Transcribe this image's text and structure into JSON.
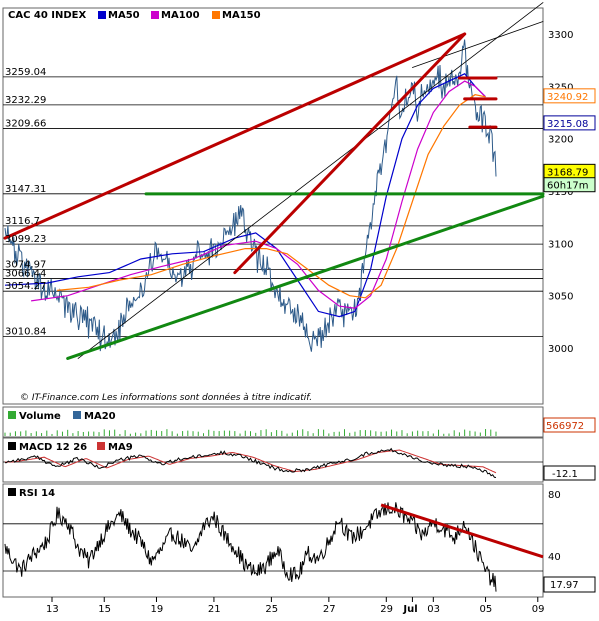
{
  "chart_data": {
    "type": "line",
    "title": "CAC 40 INDEX",
    "main": {
      "ylim": [
        2965,
        3325
      ],
      "y_ticks": [
        3000,
        3050,
        3100,
        3150,
        3200,
        3250,
        3300
      ],
      "legend": [
        {
          "name": "MA50",
          "color": "#0000cc"
        },
        {
          "name": "MA100",
          "color": "#cc00cc"
        },
        {
          "name": "MA150",
          "color": "#ff7700"
        }
      ],
      "levels": [
        {
          "label": "3259.04",
          "value": 3259.04
        },
        {
          "label": "3232.29",
          "value": 3232.29
        },
        {
          "label": "3209.66",
          "value": 3209.66
        },
        {
          "label": "3147.31",
          "value": 3147.31
        },
        {
          "label": "3116.7",
          "value": 3116.7
        },
        {
          "label": "3099.23",
          "value": 3099.23
        },
        {
          "label": "3074.97",
          "value": 3074.97
        },
        {
          "label": "3066.44",
          "value": 3066.44
        },
        {
          "label": "3054.27",
          "value": 3054.27
        },
        {
          "label": "3010.84",
          "value": 3010.84
        }
      ],
      "right_tags": [
        {
          "text": "3240.92",
          "value": 3240.92,
          "color": "#ff7700"
        },
        {
          "text": "3215.08",
          "value": 3215.08,
          "color": "#000099"
        },
        {
          "text": "3168.79",
          "value": 3168.79,
          "color": "#000000",
          "bg": "#ffff00"
        },
        {
          "text": "60h17m",
          "value": 3156.0,
          "color": "#000000",
          "bg": "#ccffcc"
        }
      ],
      "price_waypoints": [
        [
          0,
          3110
        ],
        [
          3,
          3085
        ],
        [
          6,
          3060
        ],
        [
          9,
          3052
        ],
        [
          12,
          3040
        ],
        [
          15,
          3030
        ],
        [
          18,
          3012
        ],
        [
          20,
          3005
        ],
        [
          22,
          3018
        ],
        [
          24,
          3040
        ],
        [
          27,
          3070
        ],
        [
          29,
          3095
        ],
        [
          31,
          3080
        ],
        [
          33,
          3060
        ],
        [
          35,
          3070
        ],
        [
          37,
          3090
        ],
        [
          39,
          3085
        ],
        [
          41,
          3100
        ],
        [
          43,
          3110
        ],
        [
          45,
          3130
        ],
        [
          47,
          3105
        ],
        [
          48,
          3090
        ],
        [
          50,
          3075
        ],
        [
          52,
          3055
        ],
        [
          54,
          3040
        ],
        [
          56,
          3030
        ],
        [
          58,
          3012
        ],
        [
          60,
          3010
        ],
        [
          62,
          3022
        ],
        [
          64,
          3040
        ],
        [
          66,
          3030
        ],
        [
          68,
          3055
        ],
        [
          69,
          3100
        ],
        [
          70,
          3118
        ],
        [
          71,
          3150
        ],
        [
          72,
          3175
        ],
        [
          73,
          3200
        ],
        [
          74,
          3230
        ],
        [
          75,
          3245
        ],
        [
          76,
          3225
        ],
        [
          77,
          3240
        ],
        [
          78,
          3250
        ],
        [
          79,
          3230
        ],
        [
          80,
          3250
        ],
        [
          81,
          3258
        ],
        [
          82,
          3245
        ],
        [
          83,
          3260
        ],
        [
          84,
          3248
        ],
        [
          85,
          3262
        ],
        [
          86,
          3255
        ],
        [
          87,
          3268
        ],
        [
          88,
          3280
        ],
        [
          89,
          3250
        ],
        [
          90,
          3230
        ],
        [
          91,
          3222
        ],
        [
          92,
          3210
        ],
        [
          93,
          3205
        ],
        [
          94,
          3168
        ]
      ],
      "ma50": [
        [
          0,
          3060
        ],
        [
          8,
          3062
        ],
        [
          14,
          3068
        ],
        [
          20,
          3072
        ],
        [
          26,
          3085
        ],
        [
          32,
          3090
        ],
        [
          38,
          3092
        ],
        [
          44,
          3105
        ],
        [
          48,
          3110
        ],
        [
          52,
          3095
        ],
        [
          56,
          3065
        ],
        [
          60,
          3035
        ],
        [
          64,
          3030
        ],
        [
          67,
          3035
        ],
        [
          70,
          3075
        ],
        [
          73,
          3145
        ],
        [
          76,
          3200
        ],
        [
          79,
          3232
        ],
        [
          82,
          3248
        ],
        [
          85,
          3255
        ],
        [
          88,
          3262
        ],
        [
          90,
          3250
        ],
        [
          92,
          3240
        ]
      ],
      "ma100": [
        [
          5,
          3045
        ],
        [
          12,
          3050
        ],
        [
          18,
          3060
        ],
        [
          24,
          3070
        ],
        [
          30,
          3078
        ],
        [
          36,
          3085
        ],
        [
          42,
          3098
        ],
        [
          48,
          3102
        ],
        [
          52,
          3095
        ],
        [
          56,
          3080
        ],
        [
          60,
          3055
        ],
        [
          64,
          3040
        ],
        [
          67,
          3038
        ],
        [
          70,
          3050
        ],
        [
          73,
          3085
        ],
        [
          76,
          3140
        ],
        [
          79,
          3190
        ],
        [
          82,
          3225
        ],
        [
          85,
          3245
        ],
        [
          88,
          3255
        ],
        [
          90,
          3250
        ],
        [
          92,
          3240
        ]
      ],
      "ma150": [
        [
          10,
          3055
        ],
        [
          16,
          3058
        ],
        [
          22,
          3065
        ],
        [
          28,
          3070
        ],
        [
          34,
          3080
        ],
        [
          40,
          3088
        ],
        [
          46,
          3095
        ],
        [
          50,
          3095
        ],
        [
          54,
          3090
        ],
        [
          58,
          3075
        ],
        [
          62,
          3060
        ],
        [
          66,
          3050
        ],
        [
          69,
          3048
        ],
        [
          72,
          3060
        ],
        [
          75,
          3095
        ],
        [
          78,
          3140
        ],
        [
          81,
          3185
        ],
        [
          84,
          3212
        ],
        [
          87,
          3232
        ],
        [
          90,
          3242
        ],
        [
          92,
          3240
        ]
      ],
      "note": "© IT-Finance.com   Les informations sont données à titre indicatif."
    },
    "trendlines": {
      "red": [
        {
          "from": [
            0,
            3105
          ],
          "to": [
            88,
            3300
          ]
        },
        {
          "from": [
            44,
            3072
          ],
          "to": [
            88,
            3300
          ]
        },
        {
          "from": [
            87,
            3258
          ],
          "to": [
            94,
            3258
          ]
        },
        {
          "from": [
            88,
            3238
          ],
          "to": [
            94,
            3238
          ]
        },
        {
          "from": [
            89,
            3211
          ],
          "to": [
            94,
            3211
          ]
        }
      ],
      "green": [
        {
          "from": [
            27,
            3147.31
          ],
          "to": [
            103,
            3147.31
          ]
        },
        {
          "from": [
            12,
            2990
          ],
          "to": [
            103,
            3145
          ]
        }
      ],
      "black_thin": [
        {
          "from": [
            14,
            2990
          ],
          "to": [
            103,
            3330
          ]
        },
        {
          "from": [
            78,
            3268
          ],
          "to": [
            103,
            3312
          ]
        }
      ]
    },
    "volume": {
      "legend": [
        {
          "name": "Volume",
          "color": "#33aa33"
        },
        {
          "name": "MA20",
          "color": "#336699"
        }
      ],
      "right_tag": {
        "text": "566972",
        "color": "#cc3300"
      }
    },
    "macd": {
      "legend": [
        {
          "name": "MACD 12 26",
          "color": "#000000"
        },
        {
          "name": "MA9",
          "color": "#cc3333"
        }
      ],
      "right_tag": {
        "text": "-12.1",
        "color": "#000000"
      },
      "waypoints": [
        [
          0,
          0
        ],
        [
          6,
          4
        ],
        [
          10,
          -4
        ],
        [
          14,
          3
        ],
        [
          18,
          -5
        ],
        [
          22,
          2
        ],
        [
          26,
          5
        ],
        [
          30,
          -2
        ],
        [
          34,
          3
        ],
        [
          38,
          5
        ],
        [
          42,
          8
        ],
        [
          46,
          4
        ],
        [
          50,
          -3
        ],
        [
          54,
          -8
        ],
        [
          58,
          -6
        ],
        [
          62,
          -2
        ],
        [
          66,
          2
        ],
        [
          70,
          8
        ],
        [
          74,
          10
        ],
        [
          78,
          4
        ],
        [
          82,
          -2
        ],
        [
          86,
          -3
        ],
        [
          90,
          -4
        ],
        [
          94,
          -12
        ]
      ]
    },
    "rsi": {
      "legend": [
        {
          "name": "RSI 14",
          "color": "#000000"
        }
      ],
      "ylim": [
        5,
        92
      ],
      "y_ticks": [
        40,
        80
      ],
      "levels": [
        70,
        30
      ],
      "right_tag": {
        "text": "17.97",
        "color": "#000000"
      },
      "waypoints": [
        [
          0,
          50
        ],
        [
          3,
          30
        ],
        [
          5,
          42
        ],
        [
          8,
          55
        ],
        [
          10,
          78
        ],
        [
          12,
          72
        ],
        [
          14,
          50
        ],
        [
          16,
          38
        ],
        [
          18,
          55
        ],
        [
          20,
          68
        ],
        [
          22,
          78
        ],
        [
          24,
          65
        ],
        [
          26,
          55
        ],
        [
          28,
          38
        ],
        [
          30,
          48
        ],
        [
          32,
          62
        ],
        [
          34,
          55
        ],
        [
          36,
          45
        ],
        [
          38,
          68
        ],
        [
          40,
          76
        ],
        [
          42,
          60
        ],
        [
          44,
          50
        ],
        [
          46,
          35
        ],
        [
          48,
          28
        ],
        [
          50,
          35
        ],
        [
          52,
          48
        ],
        [
          54,
          30
        ],
        [
          56,
          25
        ],
        [
          58,
          45
        ],
        [
          60,
          40
        ],
        [
          62,
          55
        ],
        [
          64,
          75
        ],
        [
          66,
          58
        ],
        [
          68,
          62
        ],
        [
          70,
          72
        ],
        [
          72,
          80
        ],
        [
          74,
          84
        ],
        [
          76,
          78
        ],
        [
          78,
          70
        ],
        [
          80,
          60
        ],
        [
          82,
          72
        ],
        [
          84,
          66
        ],
        [
          86,
          58
        ],
        [
          88,
          72
        ],
        [
          90,
          50
        ],
        [
          92,
          30
        ],
        [
          94,
          18
        ]
      ],
      "trend_red": {
        "from": [
          72,
          86
        ],
        "to": [
          103,
          42
        ]
      }
    },
    "x_axis": {
      "n": 104,
      "labels": [
        {
          "text": "13",
          "i": 9
        },
        {
          "text": "15",
          "i": 19
        },
        {
          "text": "19",
          "i": 29
        },
        {
          "text": "21",
          "i": 40
        },
        {
          "text": "25",
          "i": 51
        },
        {
          "text": "27",
          "i": 62
        },
        {
          "text": "29",
          "i": 73
        },
        {
          "text": "Jul",
          "i": 78,
          "bold": true
        },
        {
          "text": "03",
          "i": 82
        },
        {
          "text": "05",
          "i": 92
        },
        {
          "text": "09",
          "i": 102
        }
      ]
    }
  }
}
